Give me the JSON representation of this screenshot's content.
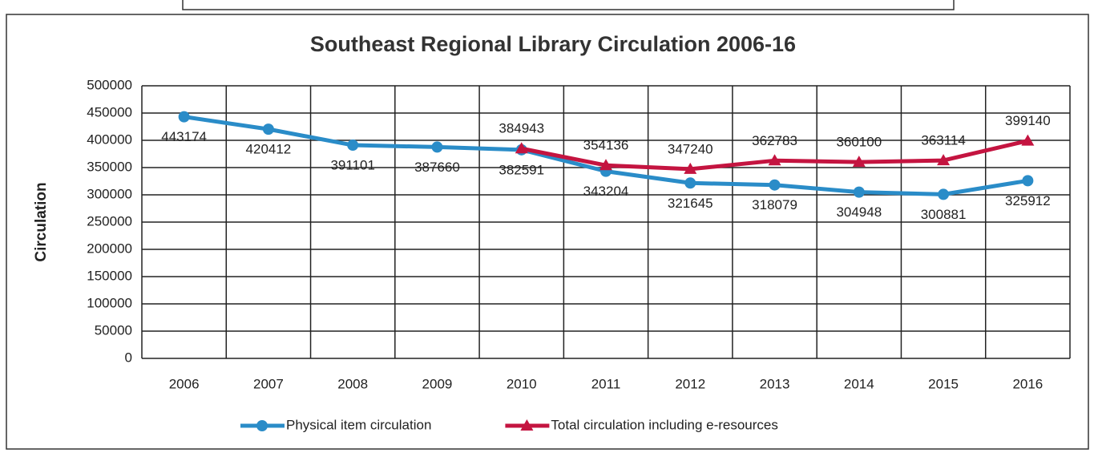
{
  "chart_data": {
    "type": "line",
    "title": "Southeast Regional Library Circulation 2006-16",
    "y_label": "Circulation",
    "categories": [
      "2006",
      "2007",
      "2008",
      "2009",
      "2010",
      "2011",
      "2012",
      "2013",
      "2014",
      "2015",
      "2016"
    ],
    "series": [
      {
        "name": "Physical item circulation",
        "color": "#2a8cc8",
        "marker": "circle",
        "values": [
          443174,
          420412,
          391101,
          387660,
          382591,
          343204,
          321645,
          318079,
          304948,
          300881,
          325912
        ]
      },
      {
        "name": "Total circulation including e-resources",
        "color": "#c41440",
        "marker": "triangle",
        "values": [
          null,
          null,
          null,
          null,
          384943,
          354136,
          347240,
          362783,
          360100,
          363114,
          399140
        ]
      }
    ],
    "ylim": [
      0,
      500000
    ],
    "yticks": [
      0,
      50000,
      100000,
      150000,
      200000,
      250000,
      300000,
      350000,
      400000,
      450000,
      500000
    ],
    "grid": true,
    "legend": "bottom"
  }
}
